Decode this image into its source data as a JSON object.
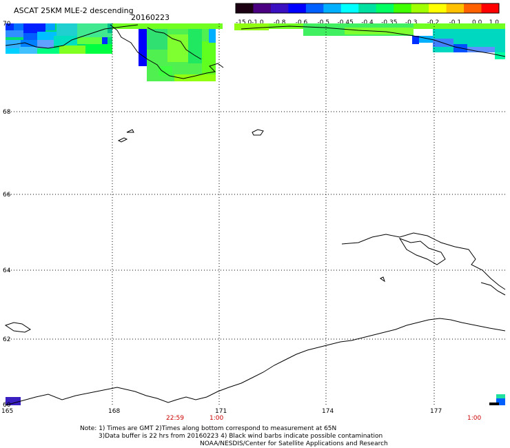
{
  "header": {
    "title": "ASCAT 25KM MLE-2 descending",
    "date": "20160223"
  },
  "colorbar": {
    "colors": [
      "#1a0010",
      "#4a0080",
      "#3a10c0",
      "#0000ff",
      "#0060ff",
      "#00b0ff",
      "#00ffff",
      "#00e0a0",
      "#00ff60",
      "#40ff00",
      "#a0ff00",
      "#ffff00",
      "#ffc000",
      "#ff6000",
      "#ff0000"
    ],
    "labels": [
      "-15.0",
      "-1.0",
      "-0.8",
      "-0.6",
      "-0.5",
      "-0.45",
      "-0.4",
      "-0.35",
      "-0.3",
      "-0.2",
      "-0.1",
      "0.0",
      "1.0"
    ]
  },
  "axes": {
    "lon_labels": [
      "165",
      "168",
      "171",
      "174",
      "177"
    ],
    "lat_labels": [
      "70",
      "68",
      "66",
      "64",
      "62",
      "60"
    ]
  },
  "times": {
    "labels": [
      "22:59",
      "1:00",
      "1:00"
    ]
  },
  "notes": {
    "line1": "Note: 1) Times are GMT 2)Times along bottom correspond to measurement at 65N",
    "line2": "3)Data buffer is 22 hrs from 20160223 4) Black wind barbs indicate possible contamination",
    "line3": "NOAA/NESDIS/Center for Satellite Applications and Research"
  }
}
